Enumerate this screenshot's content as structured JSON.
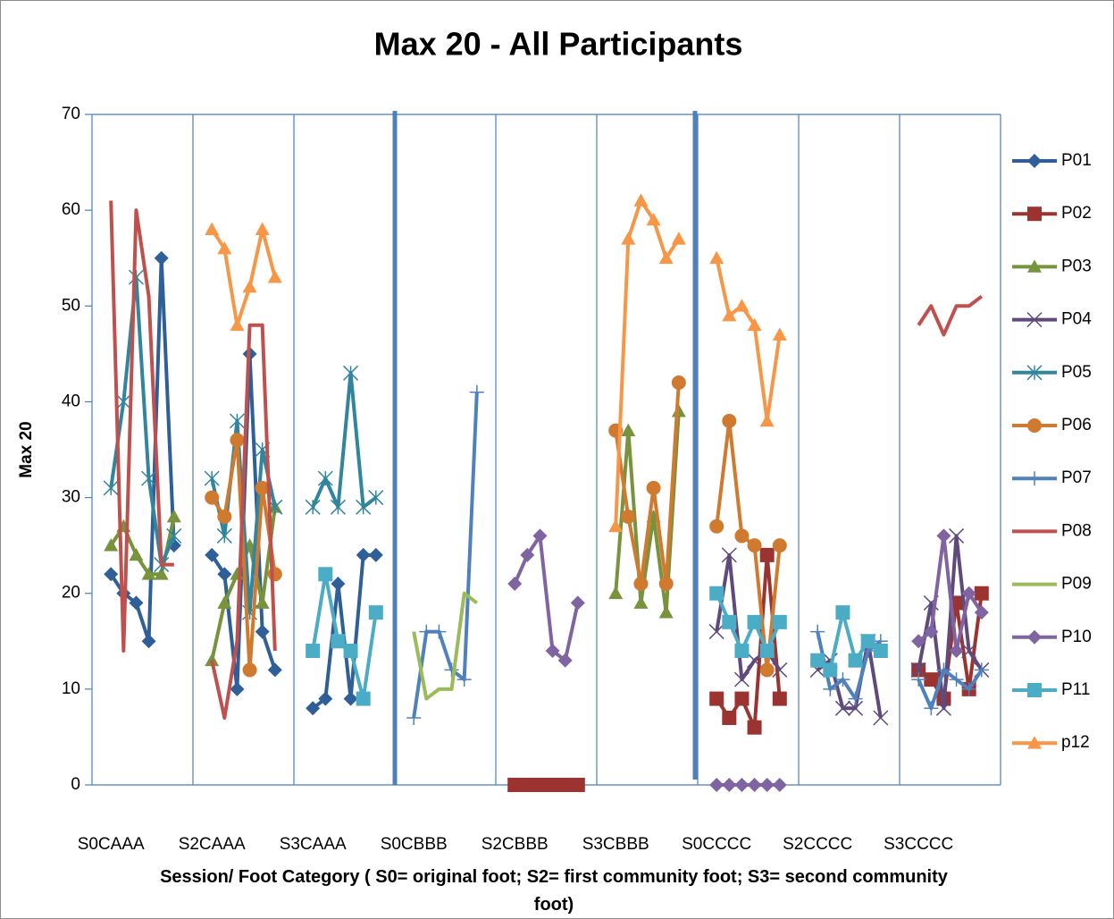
{
  "chart_data": {
    "type": "line",
    "title": "Max 20 - All Participants",
    "y_label": "Max 20",
    "x_label": "Session/ Foot  Category ( S0= original foot; S2= first community foot; S3= second community foot)",
    "categories": [
      null,
      "S0CAAA",
      null,
      null,
      null,
      null,
      null,
      null,
      null,
      "S2CAAA",
      null,
      null,
      null,
      null,
      null,
      null,
      null,
      "S3CAAA",
      null,
      null,
      null,
      null,
      null,
      null,
      null,
      "S0CBBB",
      null,
      null,
      null,
      null,
      null,
      null,
      null,
      "S2CBBB",
      null,
      null,
      null,
      null,
      null,
      null,
      null,
      "S3CBBB",
      null,
      null,
      null,
      null,
      null,
      null,
      null,
      "S0CCCC",
      null,
      null,
      null,
      null,
      null,
      null,
      null,
      "S2CCCC",
      null,
      null,
      null,
      null,
      null,
      null,
      null,
      "S3CCCC",
      null,
      null,
      null,
      null,
      null,
      null
    ],
    "ylim": [
      0,
      70
    ],
    "yticks": [
      0,
      10,
      20,
      30,
      40,
      50,
      60,
      70
    ],
    "legend": "right",
    "series": [
      {
        "name": "P01",
        "color": "#2f5f98",
        "marker": "diamond",
        "values": [
          null,
          22,
          20,
          19,
          15,
          55,
          25,
          null,
          null,
          24,
          22,
          10,
          45,
          16,
          12,
          null,
          null,
          8,
          9,
          21,
          9,
          24,
          24,
          null,
          null,
          null,
          null,
          null,
          null,
          null,
          null,
          null,
          null,
          null,
          null,
          null,
          null,
          null,
          null,
          null,
          null,
          null,
          null,
          null,
          null,
          null,
          null,
          null,
          null,
          null,
          null,
          null,
          null,
          null,
          null,
          null,
          null,
          null,
          null,
          null,
          null,
          null,
          null,
          null,
          null,
          null,
          null,
          null,
          null,
          null,
          null,
          null
        ]
      },
      {
        "name": "P02",
        "color": "#9b3431",
        "marker": "square",
        "values": [
          null,
          null,
          null,
          null,
          null,
          null,
          null,
          null,
          null,
          null,
          null,
          null,
          null,
          null,
          null,
          null,
          null,
          null,
          null,
          null,
          null,
          null,
          null,
          null,
          null,
          null,
          null,
          null,
          null,
          null,
          null,
          null,
          null,
          0,
          0,
          0,
          0,
          0,
          0,
          null,
          null,
          null,
          null,
          null,
          null,
          null,
          null,
          null,
          null,
          9,
          7,
          9,
          6,
          24,
          9,
          null,
          null,
          null,
          null,
          null,
          null,
          null,
          null,
          null,
          null,
          12,
          11,
          9,
          19,
          10,
          20,
          null
        ]
      },
      {
        "name": "P03",
        "color": "#77933c",
        "marker": "triangle",
        "values": [
          null,
          25,
          27,
          24,
          22,
          22,
          28,
          null,
          null,
          13,
          19,
          22,
          25,
          19,
          29,
          null,
          null,
          null,
          null,
          null,
          null,
          null,
          null,
          null,
          null,
          null,
          null,
          null,
          null,
          null,
          null,
          null,
          null,
          null,
          null,
          null,
          null,
          null,
          null,
          null,
          null,
          20,
          37,
          19,
          28,
          18,
          39,
          null,
          null,
          null,
          null,
          null,
          null,
          null,
          null,
          null,
          null,
          null,
          null,
          null,
          null,
          null,
          null,
          null,
          null,
          null,
          null,
          null,
          null,
          null,
          null,
          null
        ]
      },
      {
        "name": "P04",
        "color": "#5f4a7c",
        "marker": "x",
        "values": [
          null,
          null,
          null,
          null,
          null,
          null,
          null,
          null,
          null,
          null,
          null,
          null,
          null,
          null,
          null,
          null,
          null,
          null,
          null,
          null,
          null,
          null,
          null,
          null,
          null,
          null,
          null,
          null,
          null,
          null,
          null,
          null,
          null,
          null,
          null,
          null,
          null,
          null,
          null,
          null,
          null,
          null,
          null,
          null,
          null,
          null,
          null,
          null,
          null,
          16,
          24,
          11,
          13,
          14,
          12,
          null,
          null,
          12,
          13,
          8,
          8,
          15,
          7,
          null,
          null,
          12,
          19,
          8,
          26,
          14,
          12,
          null
        ]
      },
      {
        "name": "P05",
        "color": "#31859c",
        "marker": "star",
        "values": [
          null,
          31,
          40,
          53,
          32,
          23,
          26,
          null,
          null,
          32,
          26,
          38,
          18,
          35,
          29,
          null,
          null,
          29,
          32,
          29,
          43,
          29,
          30,
          null,
          null,
          null,
          null,
          null,
          null,
          null,
          null,
          null,
          null,
          null,
          null,
          null,
          null,
          null,
          null,
          null,
          null,
          null,
          null,
          null,
          null,
          null,
          null,
          null,
          null,
          null,
          null,
          null,
          null,
          null,
          null,
          null,
          null,
          null,
          null,
          null,
          null,
          null,
          null,
          null,
          null,
          null,
          null,
          null,
          null,
          null,
          null,
          null
        ]
      },
      {
        "name": "P06",
        "color": "#d07a30",
        "marker": "circle",
        "values": [
          null,
          null,
          null,
          null,
          null,
          null,
          null,
          null,
          null,
          30,
          28,
          36,
          12,
          31,
          22,
          null,
          null,
          null,
          null,
          null,
          null,
          null,
          null,
          null,
          null,
          null,
          null,
          null,
          null,
          null,
          null,
          null,
          null,
          null,
          null,
          null,
          null,
          null,
          null,
          null,
          null,
          37,
          28,
          21,
          31,
          21,
          42,
          null,
          null,
          27,
          38,
          26,
          25,
          12,
          25,
          null,
          null,
          null,
          null,
          null,
          null,
          null,
          null,
          null,
          null,
          null,
          null,
          null,
          null,
          null,
          null,
          null
        ]
      },
      {
        "name": "P07",
        "color": "#4f81bd",
        "marker": "plus",
        "values": [
          null,
          null,
          null,
          null,
          null,
          null,
          null,
          null,
          null,
          null,
          null,
          null,
          null,
          null,
          null,
          null,
          null,
          null,
          null,
          null,
          null,
          null,
          null,
          null,
          null,
          7,
          16,
          16,
          12,
          11,
          41,
          null,
          null,
          null,
          null,
          null,
          null,
          null,
          null,
          null,
          null,
          null,
          null,
          null,
          null,
          null,
          null,
          null,
          null,
          null,
          null,
          null,
          null,
          null,
          null,
          null,
          null,
          16,
          10,
          11,
          9,
          14,
          15,
          null,
          null,
          11,
          8,
          12,
          11,
          10,
          12,
          null
        ]
      },
      {
        "name": "P08",
        "color": "#c0504d",
        "marker": "none",
        "values": [
          null,
          61,
          14,
          60,
          51,
          23,
          23,
          null,
          null,
          13,
          7,
          15,
          48,
          48,
          14,
          null,
          null,
          null,
          null,
          null,
          null,
          null,
          null,
          null,
          null,
          null,
          null,
          null,
          null,
          null,
          null,
          null,
          null,
          null,
          null,
          null,
          null,
          null,
          null,
          null,
          null,
          null,
          null,
          null,
          null,
          null,
          null,
          null,
          null,
          null,
          null,
          null,
          null,
          null,
          null,
          null,
          null,
          null,
          null,
          null,
          null,
          null,
          null,
          null,
          null,
          48,
          50,
          47,
          50,
          50,
          51,
          null
        ]
      },
      {
        "name": "P09",
        "color": "#9bbb59",
        "marker": "none",
        "values": [
          null,
          null,
          null,
          null,
          null,
          null,
          null,
          null,
          null,
          null,
          null,
          null,
          null,
          null,
          null,
          null,
          null,
          null,
          null,
          null,
          null,
          null,
          null,
          null,
          null,
          16,
          9,
          10,
          10,
          20,
          19,
          null,
          null,
          null,
          null,
          null,
          null,
          null,
          null,
          null,
          null,
          null,
          null,
          null,
          null,
          null,
          null,
          null,
          null,
          null,
          null,
          null,
          null,
          null,
          null,
          null,
          null,
          null,
          null,
          null,
          null,
          null,
          null,
          null,
          null,
          null,
          null,
          null,
          null,
          null,
          null,
          null
        ]
      },
      {
        "name": "P10",
        "color": "#8064a2",
        "marker": "diamond",
        "values": [
          null,
          null,
          null,
          null,
          null,
          null,
          null,
          null,
          null,
          null,
          null,
          null,
          null,
          null,
          null,
          null,
          null,
          null,
          null,
          null,
          null,
          null,
          null,
          null,
          null,
          null,
          null,
          null,
          null,
          null,
          null,
          null,
          null,
          21,
          24,
          26,
          14,
          13,
          19,
          null,
          null,
          null,
          null,
          null,
          null,
          null,
          null,
          null,
          null,
          0,
          0,
          0,
          0,
          0,
          0,
          null,
          null,
          null,
          null,
          null,
          null,
          null,
          null,
          null,
          null,
          15,
          16,
          26,
          14,
          20,
          18,
          null
        ]
      },
      {
        "name": "P11",
        "color": "#4bacc6",
        "marker": "square",
        "values": [
          null,
          null,
          null,
          null,
          null,
          null,
          null,
          null,
          null,
          null,
          null,
          null,
          null,
          null,
          null,
          null,
          null,
          14,
          22,
          15,
          14,
          9,
          18,
          null,
          null,
          null,
          null,
          null,
          null,
          null,
          null,
          null,
          null,
          null,
          null,
          null,
          null,
          null,
          null,
          null,
          null,
          null,
          null,
          null,
          null,
          null,
          null,
          null,
          null,
          20,
          17,
          14,
          17,
          14,
          17,
          null,
          null,
          13,
          12,
          18,
          13,
          15,
          14,
          null,
          null,
          null,
          null,
          null,
          null,
          null,
          null,
          null
        ]
      },
      {
        "name": "p12",
        "color": "#f79646",
        "marker": "triangle",
        "values": [
          null,
          null,
          null,
          null,
          null,
          null,
          null,
          null,
          null,
          58,
          56,
          48,
          52,
          58,
          53,
          null,
          null,
          null,
          null,
          null,
          null,
          null,
          null,
          null,
          null,
          null,
          null,
          null,
          null,
          null,
          null,
          null,
          null,
          null,
          null,
          null,
          null,
          null,
          null,
          null,
          null,
          27,
          57,
          61,
          59,
          55,
          57,
          null,
          null,
          55,
          49,
          50,
          48,
          38,
          47,
          null,
          null,
          null,
          null,
          null,
          null,
          null,
          null,
          null,
          null,
          null,
          null,
          null,
          null,
          null,
          null,
          null
        ]
      }
    ]
  }
}
